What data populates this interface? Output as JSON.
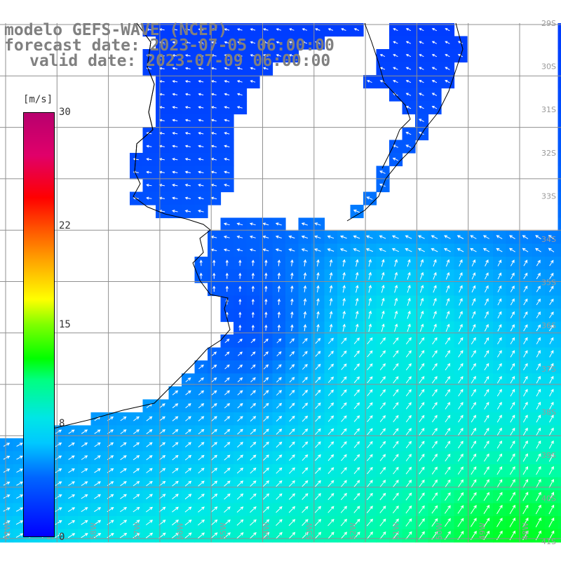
{
  "title": {
    "model": "modelo GEFS-WAVE (NCEP)",
    "forecast": "forecast date: 2023-07-05 06:00:00",
    "valid": "valid date: 2023-07-09 06:00:00"
  },
  "colorbar": {
    "unit": "[m/s]",
    "ticks": [
      {
        "label": "30",
        "value": 30
      },
      {
        "label": "22",
        "value": 22
      },
      {
        "label": "15",
        "value": 15
      },
      {
        "label": "8",
        "value": 8
      },
      {
        "label": "0",
        "value": 0
      }
    ],
    "range": [
      0,
      30
    ]
  },
  "map": {
    "lon_range": [
      -61.5,
      -47.5
    ],
    "lat_range": [
      -42.5,
      -28.5
    ],
    "grid_step_deg": 1,
    "lon_labels": [
      "61W",
      "59W",
      "58W",
      "57W",
      "56W",
      "55W",
      "54W",
      "53W",
      "52W",
      "51W",
      "50W",
      "49W",
      "48W"
    ],
    "lat_labels": [
      "29S",
      "30S",
      "31S",
      "32S",
      "33S",
      "34S",
      "35S",
      "36S",
      "37S",
      "38S",
      "39S",
      "40S",
      "41S"
    ],
    "colors": {
      "land": "#ffffff",
      "grid": "#909090",
      "coast": "#000000",
      "arrow": "#ffffff",
      "label": "#9a9a9a"
    }
  }
}
